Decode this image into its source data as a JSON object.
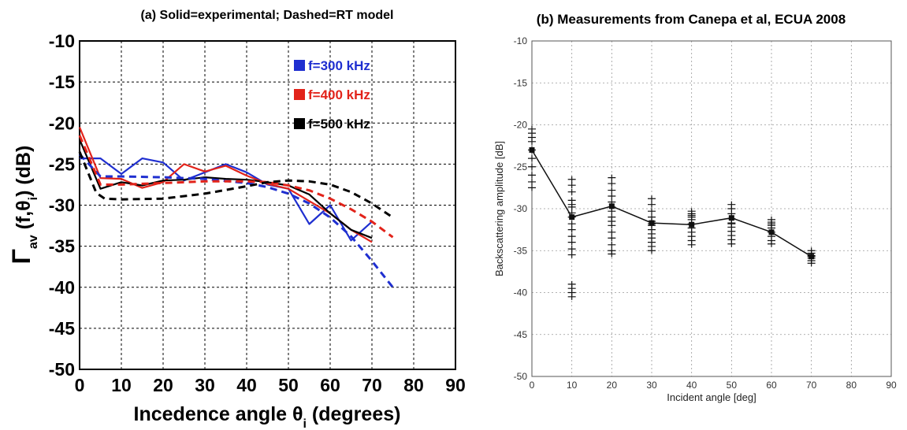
{
  "chart_data": [
    {
      "type": "line",
      "title": "(a) Solid=experimental;  Dashed=RT model",
      "xlabel": "Incedence angle θ",
      "xlabel_sub": "i",
      "xlabel_tail": " (degrees)",
      "ylabel": "Γ",
      "ylabel_sub": "av",
      "ylabel_mid": " (f,θ",
      "ylabel_sub2": "i",
      "ylabel_tail": ") (dB)",
      "xlim": [
        0,
        90
      ],
      "ylim": [
        -50,
        -10
      ],
      "xticks": [
        0,
        10,
        20,
        30,
        40,
        50,
        60,
        70,
        80,
        90
      ],
      "yticks": [
        -10,
        -15,
        -20,
        -25,
        -30,
        -35,
        -40,
        -45,
        -50
      ],
      "grid": true,
      "legend_position": "top-right",
      "series": [
        {
          "name": "f=300 kHz",
          "color": "#1f2fd0",
          "style": "solid",
          "x": [
            0,
            5,
            10,
            15,
            20,
            25,
            30,
            35,
            40,
            45,
            50,
            55,
            60,
            65,
            70
          ],
          "y": [
            -24.3,
            -24.3,
            -26.2,
            -24.3,
            -24.8,
            -27.0,
            -26.0,
            -25.0,
            -26.0,
            -27.5,
            -28.0,
            -32.3,
            -30.0,
            -34.3,
            -32.0
          ]
        },
        {
          "name": "f=400 kHz",
          "color": "#e2231a",
          "style": "solid",
          "x": [
            0,
            5,
            10,
            15,
            20,
            25,
            30,
            35,
            40,
            45,
            50,
            55,
            60,
            65,
            70
          ],
          "y": [
            -20.5,
            -26.7,
            -26.8,
            -27.9,
            -27.2,
            -25.0,
            -25.9,
            -25.2,
            -26.4,
            -27.4,
            -28.0,
            -29.5,
            -31.0,
            -33.0,
            -34.5
          ]
        },
        {
          "name": "f=500 kHz",
          "color": "#000000",
          "style": "solid",
          "x": [
            0,
            5,
            10,
            15,
            20,
            25,
            30,
            35,
            40,
            45,
            50,
            55,
            60,
            65,
            70
          ],
          "y": [
            -22.0,
            -28.0,
            -27.2,
            -27.6,
            -27.0,
            -26.9,
            -26.6,
            -26.8,
            -26.9,
            -27.2,
            -27.6,
            -28.7,
            -31.0,
            -33.0,
            -34.0
          ]
        },
        {
          "name": "",
          "color": "#1f2fd0",
          "style": "dashed",
          "x": [
            0,
            5,
            10,
            20,
            30,
            40,
            45,
            50,
            55,
            60,
            65,
            70,
            75
          ],
          "y": [
            -23.8,
            -26.5,
            -26.5,
            -26.6,
            -26.8,
            -27.3,
            -27.8,
            -28.6,
            -29.8,
            -31.5,
            -33.8,
            -36.8,
            -40.0
          ]
        },
        {
          "name": "",
          "color": "#e2231a",
          "style": "dashed",
          "x": [
            0,
            5,
            10,
            20,
            30,
            40,
            45,
            50,
            55,
            60,
            65,
            70,
            75
          ],
          "y": [
            -21.5,
            -27.5,
            -27.5,
            -27.3,
            -27.1,
            -27.1,
            -27.2,
            -27.6,
            -28.2,
            -29.2,
            -30.5,
            -32.0,
            -33.9
          ]
        },
        {
          "name": "",
          "color": "#000000",
          "style": "dashed",
          "x": [
            0,
            4,
            6,
            10,
            20,
            30,
            40,
            45,
            50,
            55,
            60,
            65,
            70,
            75
          ],
          "y": [
            -23.5,
            -28.5,
            -29.2,
            -29.3,
            -29.2,
            -28.6,
            -27.7,
            -27.2,
            -27.0,
            -27.1,
            -27.5,
            -28.4,
            -29.8,
            -31.5
          ]
        }
      ]
    },
    {
      "type": "line",
      "title": "(b) Measurements from Canepa et al, ECUA 2008",
      "xlabel": "Incident angle [deg]",
      "ylabel": "Backscattering amplitude  [dB]",
      "xlim": [
        0,
        90
      ],
      "ylim": [
        -50,
        -10
      ],
      "xticks": [
        0,
        10,
        20,
        30,
        40,
        50,
        60,
        70,
        80,
        90
      ],
      "yticks": [
        -10,
        -15,
        -20,
        -25,
        -30,
        -35,
        -40,
        -45,
        -50
      ],
      "grid": true,
      "mean_line": {
        "x": [
          0,
          10,
          20,
          30,
          40,
          50,
          60,
          70
        ],
        "y": [
          -23.0,
          -31.0,
          -29.7,
          -31.7,
          -31.9,
          -31.1,
          -32.8,
          -35.7
        ]
      },
      "scatter": {
        "marker": "plus",
        "x": [
          0,
          0,
          0,
          0,
          0,
          0,
          0,
          0,
          0,
          0,
          10,
          10,
          10,
          10,
          10,
          10,
          10,
          10,
          10,
          10,
          10,
          10,
          10,
          10,
          10,
          10,
          10,
          10,
          20,
          20,
          20,
          20,
          20,
          20,
          20,
          20,
          20,
          20,
          20,
          20,
          20,
          20,
          20,
          30,
          30,
          30,
          30,
          30,
          30,
          30,
          30,
          30,
          30,
          30,
          30,
          30,
          40,
          40,
          40,
          40,
          40,
          40,
          40,
          40,
          40,
          40,
          40,
          50,
          50,
          50,
          50,
          50,
          50,
          50,
          50,
          50,
          50,
          50,
          60,
          60,
          60,
          60,
          60,
          60,
          60,
          60,
          60,
          70,
          70,
          70,
          70,
          70,
          70,
          70
        ],
        "y": [
          -20.5,
          -21.0,
          -21.5,
          -22.0,
          -23.0,
          -24.0,
          -25.0,
          -26.0,
          -26.8,
          -27.5,
          -26.5,
          -27.2,
          -28.0,
          -29.0,
          -29.8,
          -30.5,
          -31.0,
          -31.8,
          -32.5,
          -33.3,
          -34.0,
          -34.8,
          -35.5,
          -39.0,
          -39.5,
          -40.0,
          -40.5,
          -29.5,
          -26.3,
          -27.0,
          -27.8,
          -28.5,
          -29.2,
          -29.8,
          -30.3,
          -31.0,
          -31.5,
          -32.0,
          -32.8,
          -33.5,
          -34.3,
          -35.0,
          -35.4,
          -28.8,
          -29.5,
          -30.3,
          -31.0,
          -31.5,
          -32.0,
          -32.5,
          -33.0,
          -33.5,
          -34.0,
          -34.5,
          -35.0,
          -31.8,
          -30.3,
          -30.8,
          -31.3,
          -31.8,
          -32.3,
          -32.8,
          -33.3,
          -33.8,
          -34.3,
          -30.6,
          -31.0,
          -29.5,
          -30.0,
          -30.6,
          -31.2,
          -31.7,
          -32.2,
          -32.7,
          -33.2,
          -33.7,
          -34.2,
          -31.8,
          -31.3,
          -31.8,
          -32.3,
          -32.8,
          -33.3,
          -33.8,
          -34.2,
          -31.6,
          -32.0,
          -35.0,
          -35.3,
          -35.6,
          -35.9,
          -36.2,
          -36.5,
          -35.7
        ]
      }
    }
  ]
}
